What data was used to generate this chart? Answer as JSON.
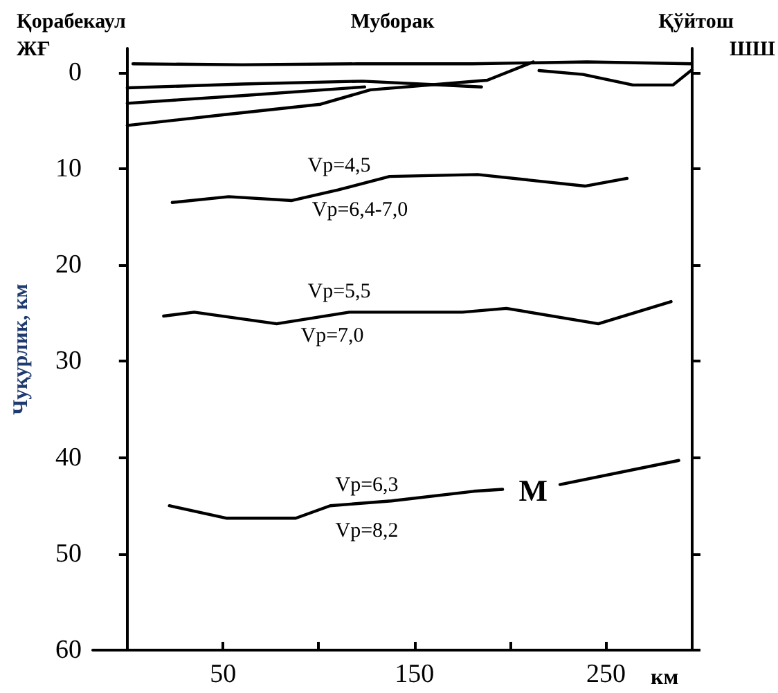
{
  "chart_data": {
    "type": "line",
    "ylabel": "Чуқурлик, км",
    "xlabel": "км",
    "xlim": [
      -18,
      295
    ],
    "xticks": [
      {
        "value": 0,
        "label": null
      },
      50,
      {
        "value": 100,
        "label": null
      },
      150,
      {
        "value": 200,
        "label": null
      },
      250
    ],
    "ylim": [
      60,
      -2.5
    ],
    "yticks": [
      0,
      10,
      20,
      30,
      40,
      50,
      60
    ],
    "grid": false,
    "marker": "none",
    "line_style": "solid",
    "series": [
      {
        "color": "#000000",
        "x": [
          3,
          60,
          120,
          180,
          240,
          295
        ],
        "values": [
          -0.9,
          -0.8,
          -0.9,
          -0.9,
          -1.1,
          -0.9
        ]
      },
      {
        "color": "#000000",
        "x": [
          0,
          60,
          123,
          185
        ],
        "values": [
          1.6,
          1.2,
          0.9,
          1.5
        ]
      },
      {
        "color": "#000000",
        "x": [
          0,
          60,
          124
        ],
        "values": [
          3.2,
          2.4,
          1.5
        ]
      },
      {
        "color": "#000000",
        "x": [
          0,
          50,
          101,
          127,
          188,
          212
        ],
        "values": [
          5.5,
          4.4,
          3.3,
          1.8,
          0.8,
          -1.1
        ]
      },
      {
        "color": "#000000",
        "x": [
          215,
          238,
          264,
          285,
          295
        ],
        "values": [
          -0.2,
          0.2,
          1.3,
          1.3,
          -0.3
        ]
      },
      {
        "color": "#000000",
        "x": [
          23.5,
          53,
          86,
          110,
          137,
          183,
          239,
          261
        ],
        "values": [
          13.5,
          12.9,
          13.3,
          12.2,
          10.8,
          10.6,
          11.8,
          11
        ]
      },
      {
        "color": "#000000",
        "x": [
          19,
          35,
          78,
          116,
          175,
          198,
          246,
          284
        ],
        "values": [
          25.3,
          24.9,
          26.1,
          24.9,
          24.9,
          24.5,
          26.1,
          23.8
        ]
      },
      {
        "color": "#000000",
        "x": [
          22,
          52,
          88,
          106,
          138,
          181,
          196,
          211,
          226,
          288
        ],
        "values": [
          45,
          46.3,
          46.3,
          45,
          44.5,
          43.5,
          43.3,
          null,
          42.8,
          40.3
        ]
      }
    ],
    "annotations": [
      "ЖҒ",
      "Қорабекаул",
      "Муборак",
      "Қўйтош",
      "ШШ",
      "Vр=4,5",
      "Vр=6,4-7,0",
      "Vр=5,5",
      "Vр=7,0",
      "Vр=6,3",
      "Vр=8,2",
      {
        "text": "M",
        "x": 212,
        "y": 43.4
      }
    ]
  }
}
